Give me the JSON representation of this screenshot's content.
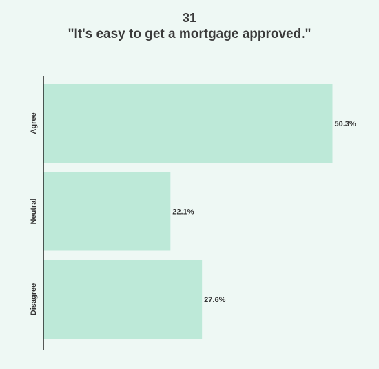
{
  "chart_data": {
    "type": "bar",
    "orientation": "horizontal",
    "title_number": "31",
    "title": "\"It's easy to get a mortgage approved.\"",
    "categories": [
      "Agree",
      "Neutral",
      "Disagree"
    ],
    "values": [
      50.3,
      22.1,
      27.6
    ],
    "value_labels": [
      "50.3%",
      "22.1%",
      "27.6%"
    ],
    "xlim": [
      0,
      53.6
    ],
    "grid": false,
    "legend": "none",
    "bar_color": "#bde9d8",
    "axis_color": "#222222",
    "background": "#eef8f4"
  }
}
